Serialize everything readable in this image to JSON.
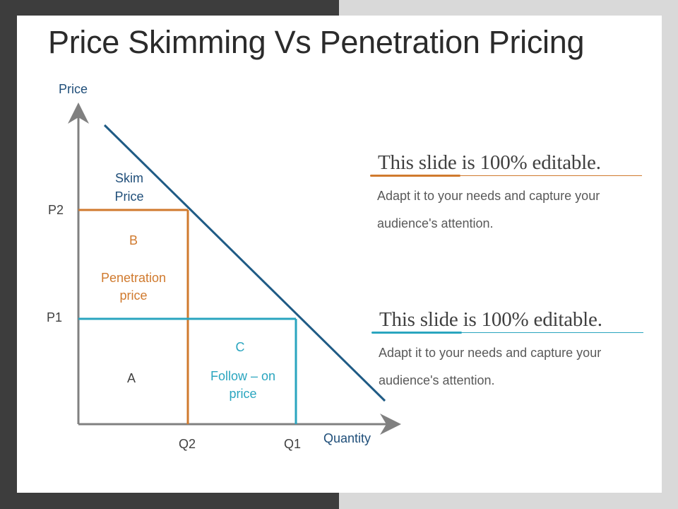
{
  "title": "Price Skimming Vs Penetration Pricing",
  "colors": {
    "demand_line": "#1f5b85",
    "skim_text": "#1f4e79",
    "orange": "#d07a2e",
    "teal": "#2aa5bf",
    "axis": "#808080",
    "text_dark": "#404040"
  },
  "diagram": {
    "y_axis_label": "Price",
    "x_axis_label": "Quantity",
    "p2_label": "P2",
    "p1_label": "P1",
    "q2_label": "Q2",
    "q1_label": "Q1",
    "skim_line1": "Skim",
    "skim_line2": "Price",
    "region_b_letter": "B",
    "region_b_line1": "Penetration",
    "region_b_line2": "price",
    "region_a_letter": "A",
    "region_c_letter": "C",
    "region_c_line1": "Follow – on",
    "region_c_line2": "price"
  },
  "notes": [
    {
      "heading": "This slide is 100% editable.",
      "body_line1": "Adapt it to your needs and capture your",
      "body_line2": "audience's attention.",
      "accent": "#d07a2e"
    },
    {
      "heading": "This slide is 100% editable.",
      "body_line1": "Adapt it to your needs and capture your",
      "body_line2": "audience's attention.",
      "accent": "#2aa5bf"
    }
  ]
}
